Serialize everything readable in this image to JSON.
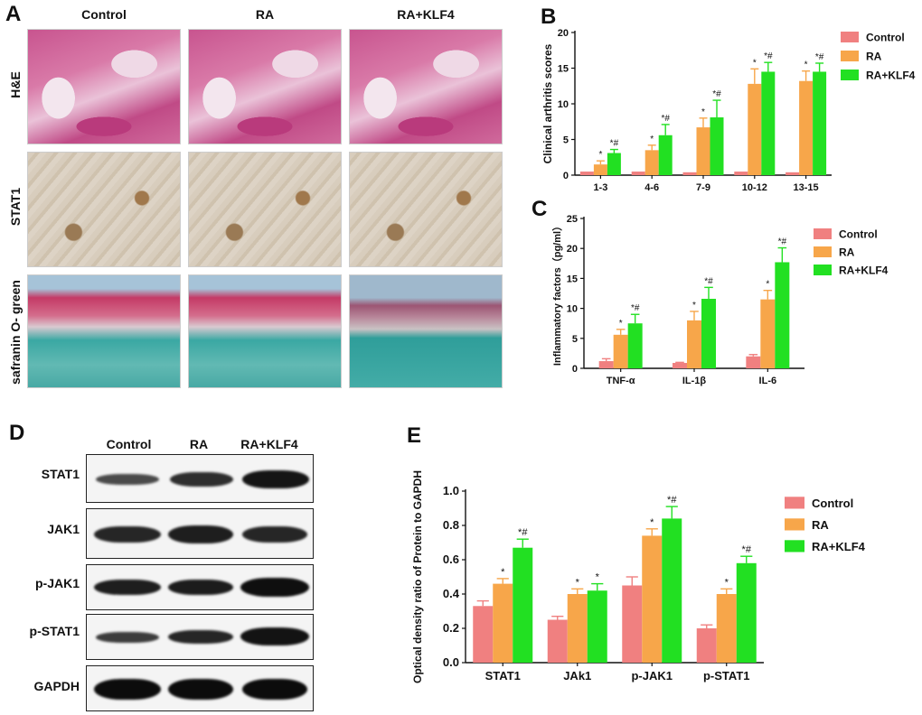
{
  "colors": {
    "control": "#f08080",
    "ra": "#f7a64a",
    "ra_klf4": "#22e022"
  },
  "panelA": {
    "label": "A",
    "columns": [
      "Control",
      "RA",
      "RA+KLF4"
    ],
    "rows": [
      "H&E",
      "STAT1",
      "safranin O- green"
    ]
  },
  "panelD": {
    "label": "D",
    "columns": [
      "Control",
      "RA",
      "RA+KLF4"
    ],
    "bands": [
      "STAT1",
      "JAK1",
      "p-JAK1",
      "p-STAT1",
      "GAPDH"
    ]
  },
  "legend": [
    "Control",
    "RA",
    "RA+KLF4"
  ],
  "chart_data": [
    {
      "panel": "B",
      "type": "bar",
      "ylabel": "Clinical arthritis scores",
      "xlabel": "",
      "ylim": [
        0,
        20
      ],
      "yticks": [
        "0",
        "5",
        "10",
        "15",
        "20"
      ],
      "categories": [
        "1-3",
        "4-6",
        "7-9",
        "10-12",
        "13-15"
      ],
      "series": [
        {
          "name": "Control",
          "values": [
            0.5,
            0.5,
            0.4,
            0.5,
            0.4
          ],
          "errors": [
            0,
            0,
            0,
            0,
            0
          ],
          "marks": [
            "",
            "",
            "",
            "",
            ""
          ]
        },
        {
          "name": "RA",
          "values": [
            1.5,
            3.5,
            6.7,
            12.8,
            13.2
          ],
          "errors": [
            0.5,
            0.7,
            1.3,
            2.1,
            1.4
          ],
          "marks": [
            "*",
            "*",
            "*",
            "*",
            "*"
          ]
        },
        {
          "name": "RA+KLF4",
          "values": [
            3.1,
            5.6,
            8.1,
            14.5,
            14.5
          ],
          "errors": [
            0.5,
            1.5,
            2.4,
            1.3,
            1.2
          ],
          "marks": [
            "*#",
            "*#",
            "*#",
            "*#",
            "*#"
          ]
        }
      ]
    },
    {
      "panel": "C",
      "type": "bar",
      "ylabel": "Inflammatory factors（pg/ml）",
      "xlabel": "",
      "ylim": [
        0,
        25
      ],
      "yticks": [
        "0",
        "5",
        "10",
        "15",
        "20",
        "25"
      ],
      "categories": [
        "TNF-α",
        "IL-1β",
        "IL-6"
      ],
      "series": [
        {
          "name": "Control",
          "values": [
            1.2,
            0.9,
            2.0
          ],
          "errors": [
            0.4,
            0.1,
            0.3
          ],
          "marks": [
            "",
            "",
            ""
          ]
        },
        {
          "name": "RA",
          "values": [
            5.6,
            8.0,
            11.5
          ],
          "errors": [
            0.9,
            1.5,
            1.5
          ],
          "marks": [
            "*",
            "*",
            "*"
          ]
        },
        {
          "name": "RA+KLF4",
          "values": [
            7.5,
            11.6,
            17.7
          ],
          "errors": [
            1.5,
            1.9,
            2.4
          ],
          "marks": [
            "*#",
            "*#",
            "*#"
          ]
        }
      ]
    },
    {
      "panel": "E",
      "type": "bar",
      "ylabel": "Optical density ratio of Protein to GAPDH",
      "xlabel": "",
      "ylim": [
        0,
        1.0
      ],
      "yticks": [
        "0.0",
        "0.2",
        "0.4",
        "0.6",
        "0.8",
        "1.0"
      ],
      "categories": [
        "STAT1",
        "JAk1",
        "p-JAK1",
        "p-STAT1"
      ],
      "series": [
        {
          "name": "Control",
          "values": [
            0.33,
            0.25,
            0.45,
            0.2
          ],
          "errors": [
            0.03,
            0.02,
            0.05,
            0.02
          ],
          "marks": [
            "",
            "",
            "",
            ""
          ]
        },
        {
          "name": "RA",
          "values": [
            0.46,
            0.4,
            0.74,
            0.4
          ],
          "errors": [
            0.03,
            0.03,
            0.04,
            0.03
          ],
          "marks": [
            "*",
            "*",
            "*",
            "*"
          ]
        },
        {
          "name": "RA+KLF4",
          "values": [
            0.67,
            0.42,
            0.84,
            0.58
          ],
          "errors": [
            0.05,
            0.04,
            0.07,
            0.04
          ],
          "marks": [
            "*#",
            "*",
            "*#",
            "*#"
          ]
        }
      ]
    }
  ]
}
